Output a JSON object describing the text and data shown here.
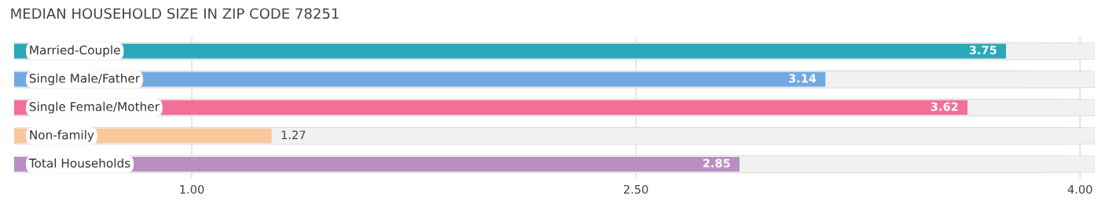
{
  "chart_data": {
    "type": "bar",
    "orientation": "horizontal",
    "title": "MEDIAN HOUSEHOLD SIZE IN ZIP CODE 78251",
    "categories": [
      "Married-Couple",
      "Single Male/Father",
      "Single Female/Mother",
      "Non-family",
      "Total Households"
    ],
    "values": [
      3.75,
      3.14,
      3.62,
      1.27,
      2.85
    ],
    "colors": [
      "#2aa8b8",
      "#74a9e0",
      "#f26f97",
      "#f8c89c",
      "#b98fc3"
    ],
    "xlim": [
      0.4,
      4.05
    ],
    "xticks": [
      {
        "value": 1.0,
        "label": "1.00"
      },
      {
        "value": 2.5,
        "label": "2.50"
      },
      {
        "value": 4.0,
        "label": "4.00"
      }
    ],
    "grid": "x",
    "data_labels": true
  }
}
